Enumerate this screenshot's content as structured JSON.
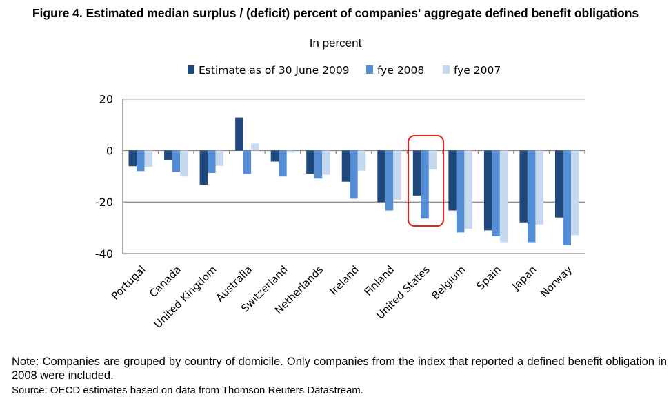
{
  "chart_data": {
    "type": "bar",
    "title": "Figure 4. Estimated median surplus / (deficit) percent of companies' aggregate defined benefit obligations",
    "subtitle": "In percent",
    "xlabel": "",
    "ylabel": "",
    "ylim": [
      -40,
      20
    ],
    "yticks": [
      20,
      0,
      -20,
      -40
    ],
    "grid": true,
    "legend_position": "top",
    "categories": [
      "Portugal",
      "Canada",
      "United Kingdom",
      "Australia",
      "Switzerland",
      "Netherlands",
      "Ireland",
      "Finland",
      "United States",
      "Belgium",
      "Spain",
      "Japan",
      "Norway"
    ],
    "series": [
      {
        "name": "Estimate as of 30 June 2009",
        "color": "#1f497d",
        "values": [
          -6.1,
          -3.6,
          -13.3,
          12.8,
          -4.3,
          -9.0,
          -12.1,
          -20.0,
          -17.5,
          -23.3,
          -31.0,
          -27.9,
          -26.0
        ]
      },
      {
        "name": "fye 2008",
        "color": "#558ed5",
        "values": [
          -8.0,
          -8.3,
          -8.7,
          -9.1,
          -10.1,
          -10.9,
          -18.7,
          -23.3,
          -26.4,
          -31.8,
          -33.3,
          -35.6,
          -36.7
        ]
      },
      {
        "name": "fye 2007",
        "color": "#c6d9f1",
        "values": [
          -6.4,
          -10.1,
          -6.0,
          2.7,
          -0.8,
          -9.4,
          -7.8,
          -19.4,
          -7.4,
          -30.4,
          -35.6,
          -28.7,
          -32.9
        ]
      }
    ],
    "annotations": [
      {
        "type": "highlight-box",
        "category": "United States",
        "color": "#e0201b"
      }
    ]
  },
  "note": "Note: Companies are grouped by country of domicile. Only companies from the index that reported a defined benefit obligation in 2008 were included.",
  "source": "Source: OECD estimates based on data from Thomson Reuters Datastream."
}
